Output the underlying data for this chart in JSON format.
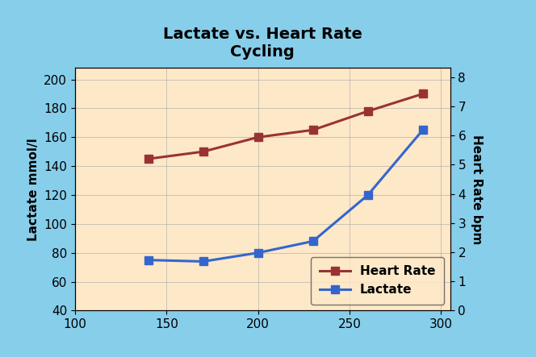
{
  "title_line1": "Lactate vs. Heart Rate",
  "title_line2": "Cycling",
  "ylabel_left": "Lactate mmol/l",
  "ylabel_right": "Heart Rate bpm",
  "x_values": [
    140,
    170,
    200,
    230,
    260,
    290
  ],
  "heart_rate": [
    145,
    150,
    160,
    165,
    178,
    190
  ],
  "lactate_left_axis": [
    75,
    74,
    80,
    88,
    120,
    165
  ],
  "xlim": [
    100,
    305
  ],
  "ylim_left": [
    40,
    208
  ],
  "ylim_right": [
    0,
    8.32
  ],
  "yticks_left": [
    40,
    60,
    80,
    100,
    120,
    140,
    160,
    180,
    200
  ],
  "yticks_right": [
    0,
    1,
    2,
    3,
    4,
    5,
    6,
    7,
    8
  ],
  "xticks": [
    100,
    150,
    200,
    250,
    300
  ],
  "heart_rate_color": "#993333",
  "lactate_color": "#3366cc",
  "plot_bg_color": "#fde8c8",
  "outer_bg_color": "#87ceeb",
  "title_fontsize": 14,
  "axis_label_fontsize": 11,
  "tick_fontsize": 11,
  "legend_fontsize": 11,
  "line_width": 2.2,
  "marker": "s",
  "marker_size": 7
}
